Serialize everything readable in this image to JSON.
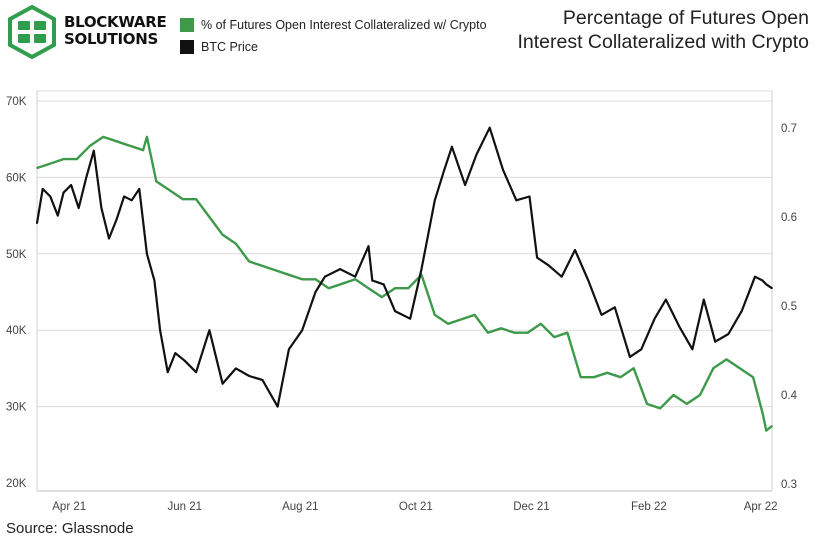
{
  "brand": {
    "name_line1": "BLOCKWARE",
    "name_line2": "SOLUTIONS"
  },
  "title_line1": "Percentage of Futures Open",
  "title_line2": "Interest Collateralized with Crypto",
  "source": "Source: Glassnode",
  "colors": {
    "collateral": "#3e9a4a",
    "btc": "#111111",
    "grid": "#dcdcdc",
    "logo": "#2e9e4e"
  },
  "chart_data": {
    "type": "line",
    "x_ticks": [
      "Apr 21",
      "Jun 21",
      "Aug 21",
      "Oct 21",
      "Dec 21",
      "Feb 22",
      "Apr 22"
    ],
    "y_left": {
      "ticks": [
        "20K",
        "30K",
        "40K",
        "50K",
        "60K",
        "70K"
      ],
      "range": [
        20000,
        70000
      ]
    },
    "y_right": {
      "ticks": [
        "0.3",
        "0.4",
        "0.5",
        "0.6",
        "0.7"
      ],
      "range": [
        0.3,
        0.72
      ]
    },
    "grid": "horizontal",
    "legend_position": "top",
    "series": [
      {
        "name": "% of Futures Open Interest Collateralized w/ Crypto",
        "axis": "right",
        "color": "#3e9a4a",
        "x": [
          "2021-03-15",
          "2021-03-22",
          "2021-03-29",
          "2021-04-05",
          "2021-04-12",
          "2021-04-19",
          "2021-04-26",
          "2021-05-03",
          "2021-05-10",
          "2021-05-12",
          "2021-05-17",
          "2021-05-24",
          "2021-05-31",
          "2021-06-07",
          "2021-06-14",
          "2021-06-21",
          "2021-06-28",
          "2021-07-05",
          "2021-07-12",
          "2021-07-19",
          "2021-07-26",
          "2021-08-02",
          "2021-08-09",
          "2021-08-16",
          "2021-08-23",
          "2021-08-30",
          "2021-09-06",
          "2021-09-13",
          "2021-09-20",
          "2021-09-27",
          "2021-10-04",
          "2021-10-11",
          "2021-10-18",
          "2021-10-25",
          "2021-11-01",
          "2021-11-08",
          "2021-11-15",
          "2021-11-22",
          "2021-11-29",
          "2021-12-06",
          "2021-12-13",
          "2021-12-20",
          "2021-12-27",
          "2022-01-03",
          "2022-01-10",
          "2022-01-17",
          "2022-01-24",
          "2022-01-31",
          "2022-02-07",
          "2022-02-14",
          "2022-02-21",
          "2022-02-28",
          "2022-03-07",
          "2022-03-14",
          "2022-03-21",
          "2022-03-28",
          "2022-04-02",
          "2022-04-04",
          "2022-04-07"
        ],
        "y": [
          0.655,
          0.66,
          0.665,
          0.665,
          0.68,
          0.69,
          0.685,
          0.68,
          0.675,
          0.69,
          0.64,
          0.63,
          0.62,
          0.62,
          0.6,
          0.58,
          0.57,
          0.55,
          0.545,
          0.54,
          0.535,
          0.53,
          0.53,
          0.52,
          0.525,
          0.53,
          0.52,
          0.51,
          0.52,
          0.52,
          0.535,
          0.49,
          0.48,
          0.485,
          0.49,
          0.47,
          0.475,
          0.47,
          0.47,
          0.48,
          0.465,
          0.47,
          0.42,
          0.42,
          0.425,
          0.42,
          0.43,
          0.39,
          0.385,
          0.4,
          0.39,
          0.4,
          0.43,
          0.44,
          0.43,
          0.42,
          0.38,
          0.36,
          0.365
        ]
      },
      {
        "name": "BTC Price",
        "axis": "left",
        "color": "#111111",
        "x": [
          "2021-03-15",
          "2021-03-18",
          "2021-03-22",
          "2021-03-26",
          "2021-03-29",
          "2021-04-02",
          "2021-04-06",
          "2021-04-10",
          "2021-04-14",
          "2021-04-18",
          "2021-04-22",
          "2021-04-26",
          "2021-04-30",
          "2021-05-04",
          "2021-05-08",
          "2021-05-12",
          "2021-05-16",
          "2021-05-19",
          "2021-05-23",
          "2021-05-27",
          "2021-06-01",
          "2021-06-07",
          "2021-06-14",
          "2021-06-21",
          "2021-06-28",
          "2021-07-05",
          "2021-07-12",
          "2021-07-20",
          "2021-07-26",
          "2021-08-02",
          "2021-08-09",
          "2021-08-14",
          "2021-08-22",
          "2021-08-30",
          "2021-09-06",
          "2021-09-08",
          "2021-09-14",
          "2021-09-20",
          "2021-09-28",
          "2021-10-04",
          "2021-10-11",
          "2021-10-16",
          "2021-10-20",
          "2021-10-27",
          "2021-11-02",
          "2021-11-09",
          "2021-11-16",
          "2021-11-23",
          "2021-11-30",
          "2021-12-04",
          "2021-12-10",
          "2021-12-17",
          "2021-12-24",
          "2021-12-31",
          "2022-01-07",
          "2022-01-14",
          "2022-01-22",
          "2022-01-28",
          "2022-02-04",
          "2022-02-10",
          "2022-02-17",
          "2022-02-24",
          "2022-03-02",
          "2022-03-08",
          "2022-03-15",
          "2022-03-22",
          "2022-03-29",
          "2022-04-02",
          "2022-04-04",
          "2022-04-07"
        ],
        "y": [
          54000,
          58500,
          57500,
          55000,
          58000,
          59000,
          56000,
          60000,
          63500,
          56000,
          52000,
          54500,
          57500,
          57000,
          58500,
          50000,
          46500,
          40000,
          34500,
          37000,
          36000,
          34500,
          40000,
          33000,
          35000,
          34000,
          33500,
          30000,
          37500,
          40000,
          45000,
          47000,
          48000,
          47000,
          51000,
          46500,
          46000,
          42500,
          41500,
          48000,
          57000,
          61000,
          64000,
          59000,
          63000,
          66500,
          61000,
          57000,
          57500,
          49500,
          48500,
          47000,
          50500,
          46500,
          42000,
          43000,
          36500,
          37500,
          41500,
          44000,
          40500,
          37500,
          44000,
          38500,
          39500,
          42500,
          47000,
          46500,
          46000,
          45500
        ]
      }
    ]
  }
}
